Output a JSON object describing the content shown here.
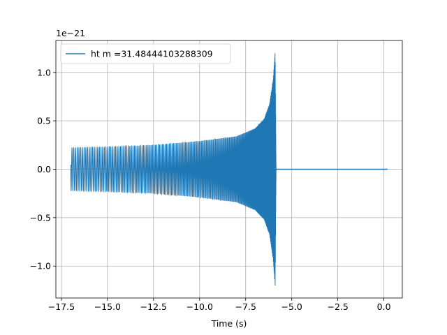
{
  "chart_data": {
    "type": "line",
    "title": "",
    "xlabel": "Time (s)",
    "ylabel": "",
    "y_offset_label": "1e−21",
    "xlim": [
      -17.8,
      1.0
    ],
    "ylim": [
      -1.33,
      1.33
    ],
    "xticks": [
      -17.5,
      -15.0,
      -12.5,
      -10.0,
      -7.5,
      -5.0,
      -2.5,
      0.0
    ],
    "xtick_labels": [
      "−17.5",
      "−15.0",
      "−12.5",
      "−10.0",
      "−7.5",
      "−5.0",
      "−2.5",
      "0.0"
    ],
    "yticks": [
      -1.0,
      -0.5,
      0.0,
      0.5,
      1.0
    ],
    "ytick_labels": [
      "−1.0",
      "−0.5",
      "0.0",
      "0.5",
      "1.0"
    ],
    "grid": true,
    "legend_position": "top-left",
    "series": [
      {
        "name": "ht m =31.48444103288309",
        "color": "#1f77b4",
        "envelope": {
          "t": [
            -17.0,
            -15.0,
            -12.5,
            -10.0,
            -8.0,
            -7.0,
            -6.5,
            -6.2,
            -6.0,
            -5.9,
            -5.85
          ],
          "amplitude": [
            0.22,
            0.23,
            0.25,
            0.29,
            0.34,
            0.42,
            0.52,
            0.68,
            0.95,
            1.22,
            0.0
          ]
        },
        "merger_time": -5.85,
        "signal_end": 0.2
      }
    ]
  }
}
